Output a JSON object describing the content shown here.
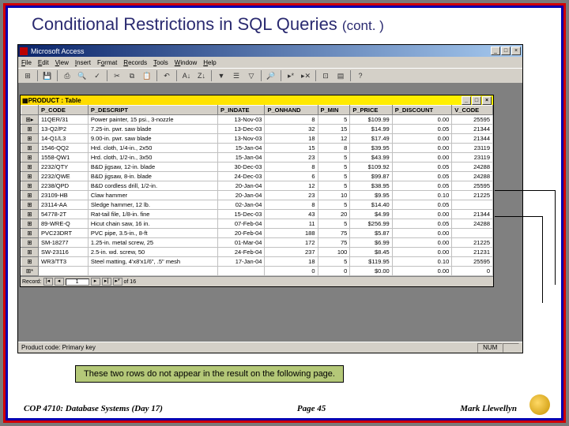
{
  "slide": {
    "title_main": "Conditional Restrictions in SQL Queries ",
    "title_cont": "(cont. )",
    "callout": "These two rows do not appear in the result on the following page.",
    "footer_left": "COP 4710: Database Systems  (Day 17)",
    "footer_center": "Page 45",
    "footer_right": "Mark Llewellyn"
  },
  "colors": {
    "outer_border": "#7a7a7a",
    "red_border": "#d00000",
    "blue_border": "#0000b0",
    "title_color": "#2a2a70",
    "callout_bg": "#b4c878"
  },
  "access": {
    "app_title": "Microsoft Access",
    "menus": [
      "File",
      "Edit",
      "View",
      "Insert",
      "Format",
      "Records",
      "Tools",
      "Window",
      "Help"
    ],
    "status_left": "Product code: Primary key",
    "status_num": "NUM",
    "table_window_title": "PRODUCT : Table",
    "nav_label": "Record:",
    "nav_value": "1",
    "nav_total": "of  16",
    "columns": [
      "P_CODE",
      "P_DESCRIPT",
      "P_INDATE",
      "P_ONHAND",
      "P_MIN",
      "P_PRICE",
      "P_DISCOUNT",
      "V_CODE"
    ],
    "rows": [
      {
        "code": "11QER/31",
        "desc": "Power painter, 15 psi., 3-nozzle",
        "indate": "13-Nov-03",
        "onhand": "8",
        "min": "5",
        "price": "$109.99",
        "disc": "0.00",
        "vcode": "25595"
      },
      {
        "code": "13-Q2/P2",
        "desc": "7.25-in. pwr. saw blade",
        "indate": "13-Dec-03",
        "onhand": "32",
        "min": "15",
        "price": "$14.99",
        "disc": "0.05",
        "vcode": "21344"
      },
      {
        "code": "14-Q1/L3",
        "desc": "9.00-in. pwr. saw blade",
        "indate": "13-Nov-03",
        "onhand": "18",
        "min": "12",
        "price": "$17.49",
        "disc": "0.00",
        "vcode": "21344"
      },
      {
        "code": "1546-QQ2",
        "desc": "Hrd. cloth, 1/4-in., 2x50",
        "indate": "15-Jan-04",
        "onhand": "15",
        "min": "8",
        "price": "$39.95",
        "disc": "0.00",
        "vcode": "23119"
      },
      {
        "code": "1558-QW1",
        "desc": "Hrd. cloth, 1/2-in., 3x50",
        "indate": "15-Jan-04",
        "onhand": "23",
        "min": "5",
        "price": "$43.99",
        "disc": "0.00",
        "vcode": "23119"
      },
      {
        "code": "2232/QTY",
        "desc": "B&D jigsaw, 12-in. blade",
        "indate": "30-Dec-03",
        "onhand": "8",
        "min": "5",
        "price": "$109.92",
        "disc": "0.05",
        "vcode": "24288"
      },
      {
        "code": "2232/QWE",
        "desc": "B&D jigsaw, 8-in. blade",
        "indate": "24-Dec-03",
        "onhand": "6",
        "min": "5",
        "price": "$99.87",
        "disc": "0.05",
        "vcode": "24288"
      },
      {
        "code": "2238/QPD",
        "desc": "B&D cordless drill, 1/2-in.",
        "indate": "20-Jan-04",
        "onhand": "12",
        "min": "5",
        "price": "$38.95",
        "disc": "0.05",
        "vcode": "25595"
      },
      {
        "code": "23109-HB",
        "desc": "Claw hammer",
        "indate": "20-Jan-04",
        "onhand": "23",
        "min": "10",
        "price": "$9.95",
        "disc": "0.10",
        "vcode": "21225"
      },
      {
        "code": "23114-AA",
        "desc": "Sledge hammer, 12 lb.",
        "indate": "02-Jan-04",
        "onhand": "8",
        "min": "5",
        "price": "$14.40",
        "disc": "0.05",
        "vcode": ""
      },
      {
        "code": "54778-2T",
        "desc": "Rat-tail file, 1/8-in. fine",
        "indate": "15-Dec-03",
        "onhand": "43",
        "min": "20",
        "price": "$4.99",
        "disc": "0.00",
        "vcode": "21344"
      },
      {
        "code": "89-WRE-Q",
        "desc": "Hicut chain saw, 16 in.",
        "indate": "07-Feb-04",
        "onhand": "11",
        "min": "5",
        "price": "$256.99",
        "disc": "0.05",
        "vcode": "24288"
      },
      {
        "code": "PVC23DRT",
        "desc": "PVC pipe, 3.5-in., 8-ft",
        "indate": "20-Feb-04",
        "onhand": "188",
        "min": "75",
        "price": "$5.87",
        "disc": "0.00",
        "vcode": ""
      },
      {
        "code": "SM-18277",
        "desc": "1.25-in. metal screw, 25",
        "indate": "01-Mar-04",
        "onhand": "172",
        "min": "75",
        "price": "$6.99",
        "disc": "0.00",
        "vcode": "21225"
      },
      {
        "code": "SW-23116",
        "desc": "2.5-in. wd. screw, 50",
        "indate": "24-Feb-04",
        "onhand": "237",
        "min": "100",
        "price": "$8.45",
        "disc": "0.00",
        "vcode": "21231"
      },
      {
        "code": "WR3/TT3",
        "desc": "Steel matting, 4'x8'x1/6\", .5\" mesh",
        "indate": "17-Jan-04",
        "onhand": "18",
        "min": "5",
        "price": "$119.95",
        "disc": "0.10",
        "vcode": "25595"
      }
    ],
    "pointed_row_indices": [
      9,
      12
    ]
  }
}
